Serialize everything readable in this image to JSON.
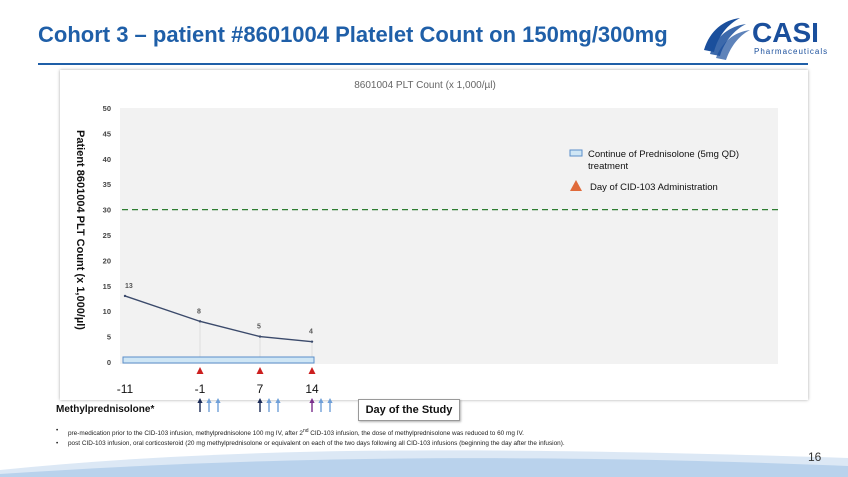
{
  "slide": {
    "title": "Cohort 3 – patient #8601004 Platelet Count on 150mg/300mg",
    "page_number": "16",
    "logo": {
      "name": "CASI",
      "subtitle": "Pharmaceuticals"
    },
    "methylprednisolone_label": "Methylprednisolone*",
    "day_label": "Day of the Study",
    "footnotes": [
      "pre-medication prior to the CID-103 infusion, methylprednisolone 100 mg IV, after 2nd CID-103 infusion, the dose of methylprednisolone was reduced to 60 mg IV.",
      "post CID-103 infusion, oral corticosteroid (20 mg methylprednisolone or equivalent on each of the two days following all CID-103 infusions (beginning the day after the infusion)."
    ],
    "colors": {
      "title": "#1f5fa8",
      "line": "#3b4a6b",
      "threshold": "#2e7d32",
      "triangle_red": "#cc1f1f",
      "arrow_dark": "#1a2a55",
      "arrow_light": "#6f9fd8",
      "arrow_purple": "#7a2e8c",
      "band": "#cfe6f5",
      "logo": "#1a4f9c"
    }
  },
  "chart_data": {
    "type": "line",
    "title": "8601004 PLT Count (x 1,000/µl)",
    "ylabel": "Patient 8601004 PLT Count (x 1,000/µl)",
    "ylim": [
      0,
      50
    ],
    "yticks": [
      0,
      5,
      10,
      15,
      20,
      25,
      30,
      35,
      40,
      45,
      50
    ],
    "x": [
      -11,
      -1,
      7,
      14
    ],
    "xtick_labels": [
      "-11",
      "-1",
      "7",
      "14"
    ],
    "series": [
      {
        "values": [
          13,
          8,
          5,
          4
        ],
        "data_labels": [
          "13",
          "8",
          "5",
          "4"
        ]
      }
    ],
    "threshold": 30,
    "prednisolone_period": [
      -11,
      14
    ],
    "cid103_days": [
      -1,
      7,
      14
    ],
    "methylprednisolone_days": [
      -1,
      7,
      14
    ],
    "legend": {
      "placement": "right",
      "items": [
        {
          "label": "Continue of Prednisolone (5mg QD) treatment",
          "symbol": "band"
        },
        {
          "label": "Day of CID-103 Administration",
          "symbol": "triangle"
        }
      ]
    },
    "grid": false
  }
}
